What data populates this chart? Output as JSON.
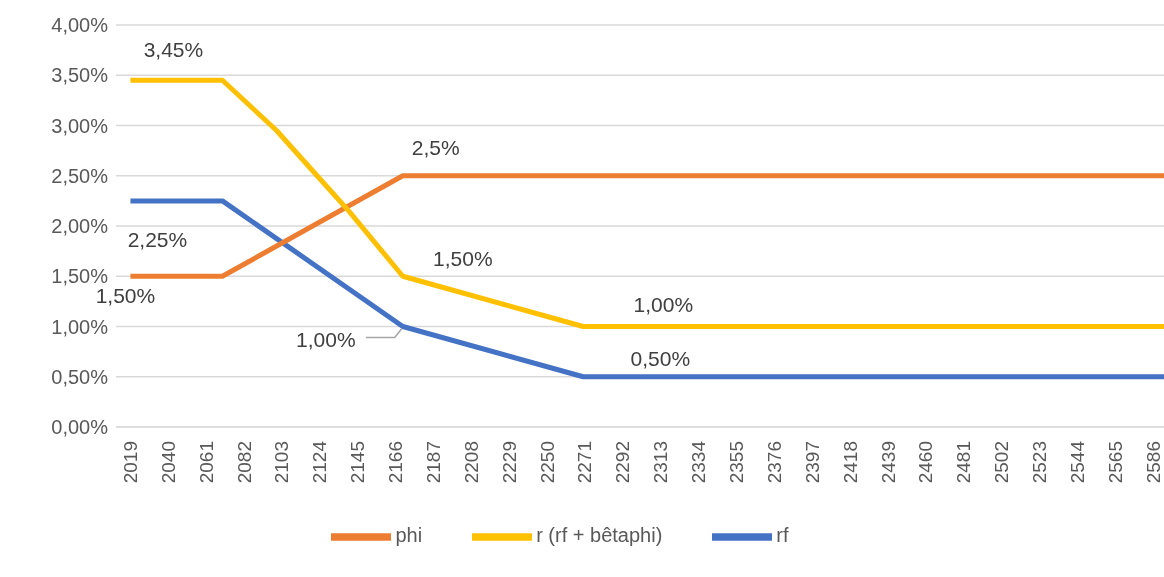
{
  "chart_data": {
    "type": "line",
    "xlim": [
      2011,
      2592
    ],
    "xticks": [
      2019,
      2040,
      2061,
      2082,
      2103,
      2124,
      2145,
      2166,
      2187,
      2208,
      2229,
      2250,
      2271,
      2292,
      2313,
      2334,
      2355,
      2376,
      2397,
      2418,
      2439,
      2460,
      2481,
      2502,
      2523,
      2544,
      2565,
      2586
    ],
    "ylim": [
      0,
      4
    ],
    "yticks": [
      {
        "value": 0,
        "label": "0,00%"
      },
      {
        "value": 0.5,
        "label": "0,50%"
      },
      {
        "value": 1,
        "label": "1,00%"
      },
      {
        "value": 1.5,
        "label": "1,50%"
      },
      {
        "value": 2,
        "label": "2,00%"
      },
      {
        "value": 2.5,
        "label": "2,50%"
      },
      {
        "value": 3,
        "label": "3,00%"
      },
      {
        "value": 3.5,
        "label": "3,50%"
      },
      {
        "value": 4,
        "label": "4,00%"
      }
    ],
    "grid": "y",
    "legend": "bottom",
    "marker": "none",
    "line_style": "solid",
    "series": [
      {
        "name": "rf",
        "color": "#4472c4",
        "x": [
          2019,
          2070,
          2170,
          2270,
          2592
        ],
        "values": [
          2.25,
          2.25,
          1.0,
          0.5,
          0.5
        ]
      },
      {
        "name": "phi",
        "color": "#ed7d31",
        "x": [
          2019,
          2070,
          2170,
          2592
        ],
        "values": [
          1.5,
          1.5,
          2.5,
          2.5
        ]
      },
      {
        "name": "r (rf + bêtaphi)",
        "color": "#ffc000",
        "x": [
          2019,
          2070,
          2100,
          2120,
          2140,
          2170,
          2270,
          2592
        ],
        "values": [
          3.45,
          3.45,
          2.95,
          2.55,
          2.15,
          1.5,
          1.0,
          1.0
        ]
      }
    ],
    "annotations": [
      {
        "text": "3,45%",
        "x": 2019,
        "y": 3.45
      },
      {
        "text": "2,25%",
        "x": 2019,
        "y": 2.25
      },
      {
        "text": "1,50%",
        "x": 2019,
        "y": 1.5
      },
      {
        "text": "1,00%",
        "x": 2170,
        "y": 1.0
      },
      {
        "text": "2,5%",
        "x": 2170,
        "y": 2.5
      },
      {
        "text": "1,50%",
        "x": 2170,
        "y": 1.5
      },
      {
        "text": "1,00%",
        "x": 2300,
        "y": 1.0
      },
      {
        "text": "0,50%",
        "x": 2300,
        "y": 0.5
      }
    ]
  }
}
